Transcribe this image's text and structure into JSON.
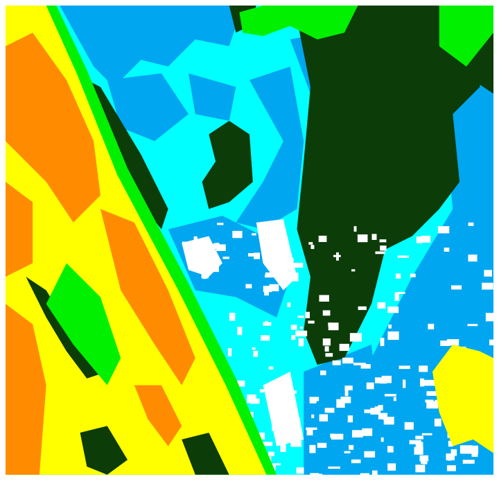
{
  "image": {
    "kind": "false-color satellite imagery",
    "palette": {
      "orange": "#ff8c00",
      "yellow": "#ffff00",
      "green": "#00f000",
      "dark_green": "#0c3c08",
      "cyan": "#00ffff",
      "blue": "#00a6f0",
      "white": "#ffffff"
    }
  }
}
